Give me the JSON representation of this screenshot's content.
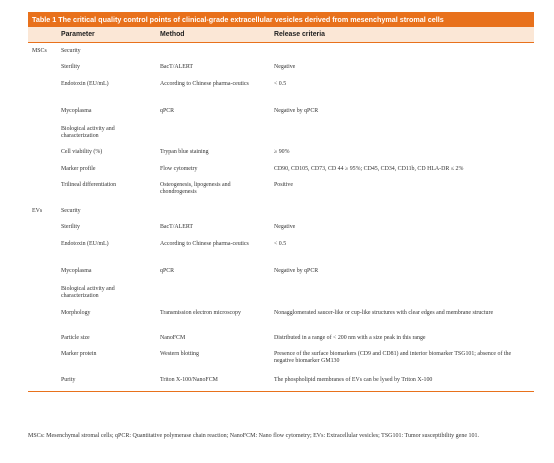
{
  "caption": "Table 1 The critical quality control points of clinical-grade extracellular vesicles derived from mesenchymal stromal cells",
  "headers": {
    "parameter": "Parameter",
    "method": "Method",
    "criteria": "Release criteria"
  },
  "rows": [
    {
      "group": "MSCs",
      "parameter": "Security",
      "method": "",
      "criteria": ""
    },
    {
      "group": "",
      "parameter": "Sterility",
      "method": "BacT/ALERT",
      "criteria": "Negative"
    },
    {
      "group": "",
      "parameter": "Endotoxin (EU/mL)",
      "method": "According to Chinese pharma-ceutics",
      "criteria": "< 0.5"
    },
    {
      "group": "",
      "parameter": "Mycoplasma",
      "method": "qPCR",
      "criteria": "Negative by qPCR"
    },
    {
      "group": "",
      "parameter": "Biological activity and characterization",
      "method": "",
      "criteria": ""
    },
    {
      "group": "",
      "parameter": "Cell viability (%)",
      "method": "Trypan blue staining",
      "criteria": "≥ 90%"
    },
    {
      "group": "",
      "parameter": "Marker profile",
      "method": "Flow cytometry",
      "criteria": "CD90, CD105, CD73, CD 44 ≥ 95%; CD45, CD34, CD11b, CD HLA-DR ≤ 2%"
    },
    {
      "group": "",
      "parameter": "Trilineal differentiation",
      "method": "Osteogenesis, lipogenesis and chondrogenesis",
      "criteria": "Positive"
    },
    {
      "group": "EVs",
      "parameter": "Security",
      "method": "",
      "criteria": ""
    },
    {
      "group": "",
      "parameter": "Sterility",
      "method": "BacT/ALERT",
      "criteria": "Negative"
    },
    {
      "group": "",
      "parameter": "Endotoxin (EU/mL)",
      "method": "According to Chinese pharma-ceutics",
      "criteria": "< 0.5"
    },
    {
      "group": "",
      "parameter": "Mycoplasma",
      "method": "qPCR",
      "criteria": "Negative by qPCR"
    },
    {
      "group": "",
      "parameter": "Biological activity and characterization",
      "method": "",
      "criteria": ""
    },
    {
      "group": "",
      "parameter": "Morphology",
      "method": "Transmission electron microscopy",
      "criteria": "Nonagglomerated saucer-like or cup-like structures with clear edges and membrane structure"
    },
    {
      "group": "",
      "parameter": "Particle size",
      "method": "NanoFCM",
      "criteria": "Distributed in a range of < 200 nm with a size peak in this range"
    },
    {
      "group": "",
      "parameter": "Marker protein",
      "method": "Western blotting",
      "criteria": "Presence of the surface biomarkers (CD9 and CD81) and interior biomarker TSG101; absence of the negative biomarker GM130"
    },
    {
      "group": "",
      "parameter": "Purity",
      "method": "Triton X-100/NanoFCM",
      "criteria": "The phospholipid membranes of EVs can be lysed by Triton X-100"
    }
  ],
  "footnote": "MSCs: Mesenchymal stromal cells; qPCR: Quantitative polymerase chain reaction; NanoFCM: Nano flow cytometry; EVs: Extracellular vesicles; TSG101: Tumor susceptibility gene 101.",
  "colors": {
    "accent": "#e8711c",
    "header_bg": "#fbe7d6"
  }
}
